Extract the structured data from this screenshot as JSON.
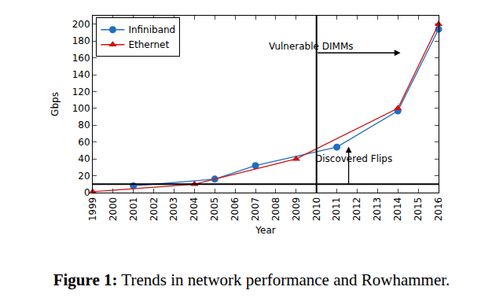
{
  "chart_data": {
    "type": "line",
    "x_label": "Year",
    "y_label": "Gbps",
    "caption_label": "Figure 1:",
    "caption": "Trends in network performance and Rowhammer.",
    "series": [
      {
        "name": "Infiniband",
        "color": "#1f6fc0",
        "marker": "circle",
        "line_style": "solid",
        "x": [
          2001,
          2005,
          2007,
          2011,
          2014,
          2016
        ],
        "values": [
          8,
          16,
          32,
          54,
          97,
          194
        ]
      },
      {
        "name": "Ethernet",
        "color": "#d01010",
        "marker": "triangle-up",
        "line_style": "solid",
        "x": [
          1999,
          2004,
          2009,
          2014,
          2016
        ],
        "values": [
          1,
          10,
          40,
          100,
          200
        ]
      }
    ],
    "xlim": [
      1999,
      2016
    ],
    "xticks": [
      1999,
      2000,
      2001,
      2002,
      2003,
      2004,
      2005,
      2006,
      2007,
      2008,
      2009,
      2010,
      2011,
      2012,
      2013,
      2014,
      2015,
      2016
    ],
    "ylim": [
      0,
      210
    ],
    "yticks": [
      0,
      20,
      40,
      60,
      80,
      100,
      120,
      140,
      160,
      180,
      200
    ],
    "grid": false,
    "legend": "upper left",
    "reference_lines": {
      "x": 2010,
      "y": 10
    },
    "annotations": [
      "Vulnerable DIMMs",
      "Discovered Flips"
    ]
  }
}
